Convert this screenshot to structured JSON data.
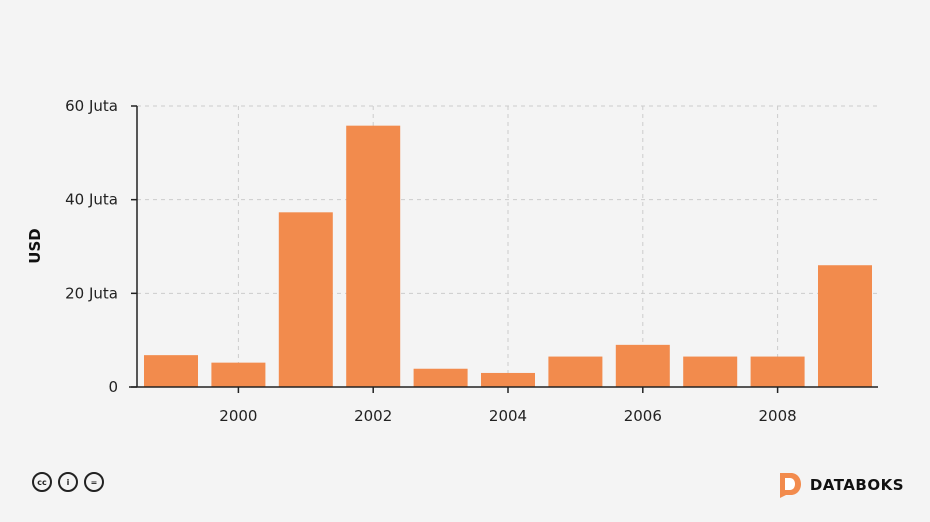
{
  "chart_data": {
    "type": "bar",
    "categories": [
      "1999",
      "2000",
      "2001",
      "2002",
      "2003",
      "2004",
      "2005",
      "2006",
      "2007",
      "2008",
      "2009"
    ],
    "values": [
      6.8,
      5.2,
      37.3,
      55.8,
      3.9,
      3.0,
      6.5,
      9.0,
      6.5,
      6.5,
      26.0
    ],
    "title": "",
    "xlabel": "",
    "ylabel": "USD",
    "ylim": [
      0,
      60
    ],
    "yticks": [
      0,
      20,
      40,
      60
    ],
    "ytick_labels": [
      "0",
      "20 Juta",
      "40 Juta",
      "60 Juta"
    ],
    "xticks": [
      "2000",
      "2002",
      "2004",
      "2006",
      "2008"
    ],
    "grid": true,
    "bar_color": "#f28b4d"
  },
  "footer": {
    "license_icons": [
      "cc-icon",
      "by-icon",
      "nd-icon"
    ],
    "license_glyphs": [
      "cc",
      "i",
      "="
    ],
    "brand_name": "DATABOKS",
    "brand_color": "#f28b4d"
  }
}
